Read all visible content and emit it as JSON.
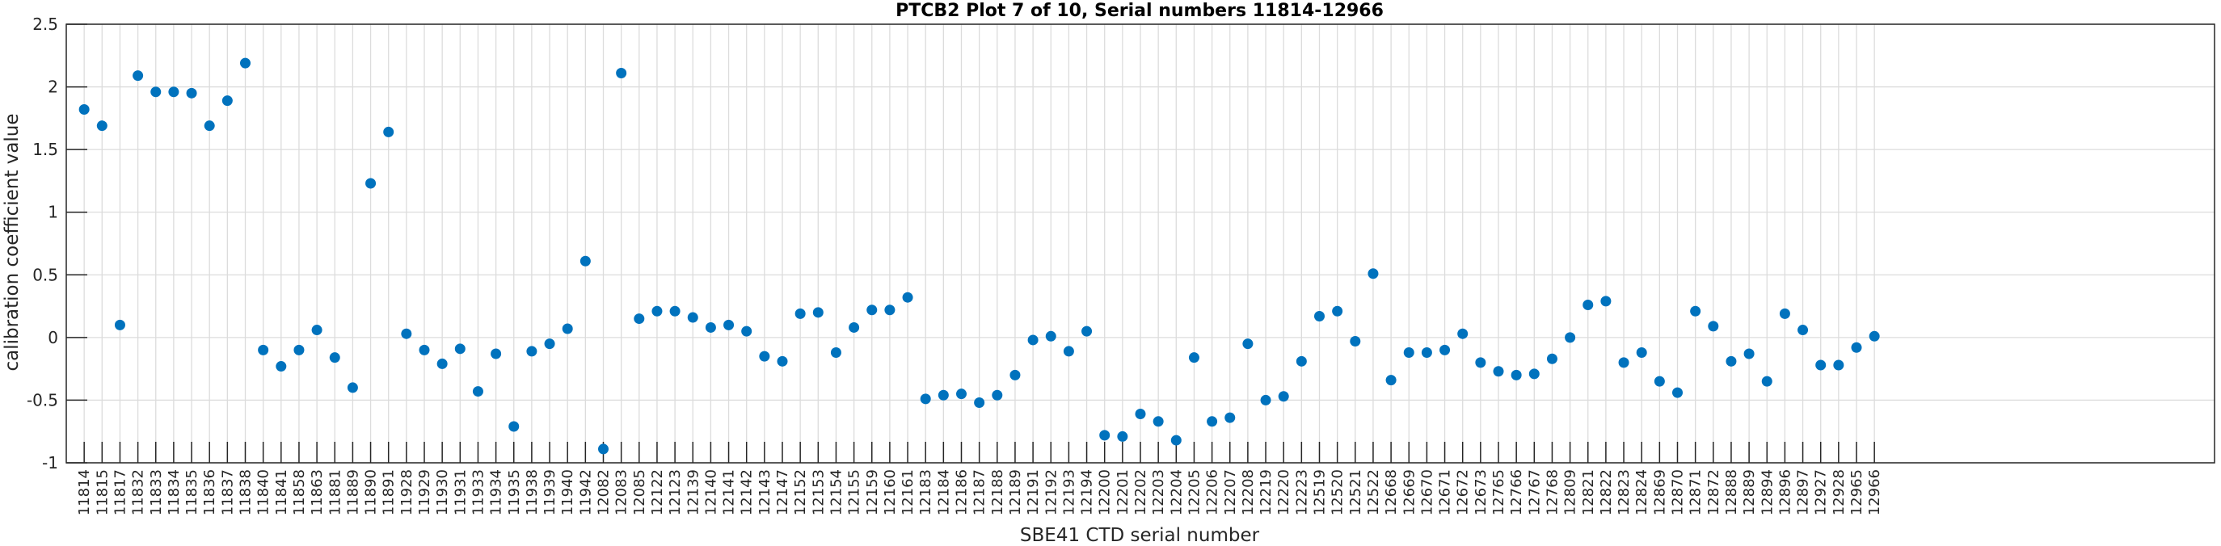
{
  "chart_data": {
    "type": "scatter",
    "title": "PTCB2 Plot 7 of 10, Serial numbers 11814-12966",
    "xlabel": "SBE41 CTD serial number",
    "ylabel": "calibration coefficient value",
    "ylim": [
      -1,
      2.5
    ],
    "xlim": [
      0,
      120
    ],
    "yticks": [
      "2.5",
      "2",
      "1.5",
      "1",
      "0.5",
      "0",
      "-0.5",
      "-1"
    ],
    "ytick_values": [
      2.5,
      2,
      1.5,
      1,
      0.5,
      0,
      -0.5,
      -1
    ],
    "grid": true,
    "marker_color": "#0072BD",
    "categories": [
      "11814",
      "11815",
      "11817",
      "11832",
      "11833",
      "11834",
      "11835",
      "11836",
      "11837",
      "11838",
      "11840",
      "11841",
      "11858",
      "11863",
      "11881",
      "11889",
      "11890",
      "11891",
      "11928",
      "11929",
      "11930",
      "11931",
      "11933",
      "11934",
      "11935",
      "11938",
      "11939",
      "11940",
      "11942",
      "12082",
      "12083",
      "12085",
      "12122",
      "12123",
      "12139",
      "12140",
      "12141",
      "12142",
      "12143",
      "12147",
      "12152",
      "12153",
      "12154",
      "12155",
      "12159",
      "12160",
      "12161",
      "12183",
      "12184",
      "12186",
      "12187",
      "12188",
      "12189",
      "12191",
      "12192",
      "12193",
      "12194",
      "12200",
      "12201",
      "12202",
      "12203",
      "12204",
      "12205",
      "12206",
      "12207",
      "12208",
      "12219",
      "12220",
      "12223",
      "12519",
      "12520",
      "12521",
      "12522",
      "12668",
      "12669",
      "12670",
      "12671",
      "12672",
      "12673",
      "12765",
      "12766",
      "12767",
      "12768",
      "12809",
      "12821",
      "12822",
      "12823",
      "12824",
      "12869",
      "12870",
      "12871",
      "12872",
      "12888",
      "12889",
      "12894",
      "12896",
      "12897",
      "12927",
      "12928",
      "12965",
      "12966"
    ],
    "values": [
      1.82,
      1.69,
      0.1,
      2.09,
      1.96,
      1.96,
      1.95,
      1.69,
      1.89,
      2.19,
      -0.1,
      -0.23,
      -0.1,
      0.06,
      -0.16,
      -0.4,
      1.23,
      1.64,
      0.03,
      -0.1,
      -0.21,
      -0.09,
      -0.43,
      -0.13,
      -0.71,
      -0.11,
      -0.05,
      0.07,
      0.61,
      -0.89,
      2.11,
      0.15,
      0.21,
      0.21,
      0.16,
      0.08,
      0.1,
      0.05,
      -0.15,
      -0.19,
      0.19,
      0.2,
      -0.12,
      0.08,
      0.22,
      0.22,
      0.32,
      -0.49,
      -0.46,
      -0.45,
      -0.52,
      -0.46,
      -0.3,
      -0.02,
      0.01,
      -0.11,
      0.05,
      -0.78,
      -0.79,
      -0.61,
      -0.67,
      -0.82,
      -0.16,
      -0.67,
      -0.64,
      -0.05,
      -0.5,
      -0.47,
      -0.19,
      0.17,
      0.21,
      -0.03,
      0.51,
      -0.34,
      -0.12,
      -0.12,
      -0.1,
      0.03,
      -0.2,
      -0.27,
      -0.3,
      -0.29,
      -0.17,
      0.0,
      0.26,
      0.29,
      -0.2,
      -0.12,
      -0.35,
      -0.44,
      0.21,
      0.09,
      -0.19,
      -0.13,
      -0.35,
      0.19,
      0.06,
      -0.22,
      -0.22,
      -0.08,
      0.01
    ]
  }
}
